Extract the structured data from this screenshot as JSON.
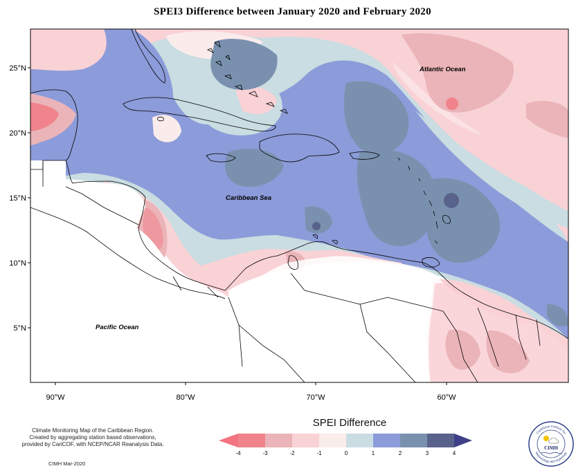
{
  "title": "SPEI3 Difference between January 2020 and February 2020",
  "map": {
    "lat_labels": [
      "25°N",
      "20°N",
      "15°N",
      "10°N",
      "5°N"
    ],
    "lon_labels": [
      "90°W",
      "80°W",
      "70°W",
      "60°W"
    ],
    "place_labels": {
      "atlantic": "Atlantic Ocean",
      "caribbean": "Caribbean Sea",
      "pacific": "Pacific Ocean"
    }
  },
  "legend": {
    "title": "SPEI Difference",
    "ticks": [
      "-4",
      "-3",
      "-2",
      "-1",
      "0",
      "1",
      "2",
      "3",
      "4"
    ],
    "colors": [
      "#f0838b",
      "#eab4b8",
      "#f9d2d6",
      "#fbecec",
      "#c9dde2",
      "#8c9bd9",
      "#7991ae",
      "#58628a"
    ],
    "lower_arrow_color": "#f27480",
    "upper_arrow_color": "#3e3f87"
  },
  "footer": {
    "line1": "Climate Monitoring Map of the Caribbean Region.",
    "line2": "Created by aggregating station based observations,",
    "line3": "provided by CariCOF, with NCEP/NCAR Reanalysis Data.",
    "stamp": "CIMH Mar-2020"
  },
  "logo": {
    "text": "CIMH",
    "ring_top": "Caribbean Institute for",
    "ring_bottom": "Meteorology and Hydrology"
  }
}
